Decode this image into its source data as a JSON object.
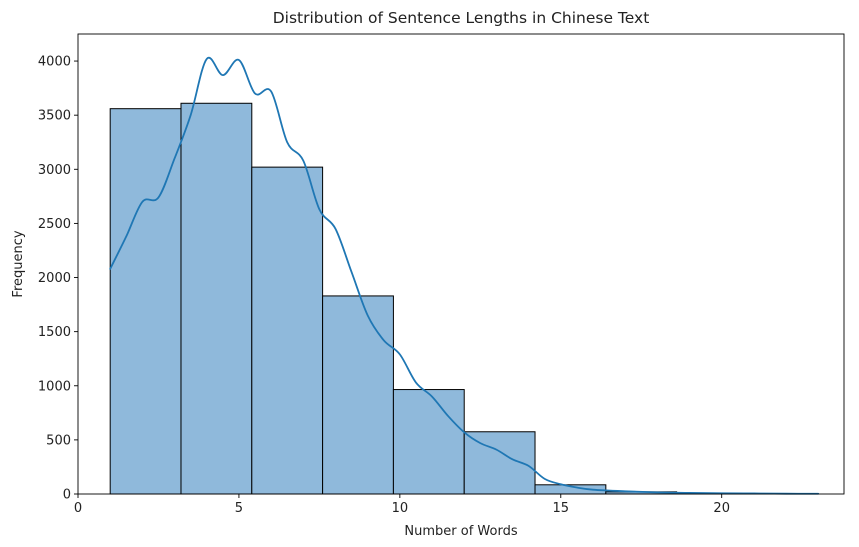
{
  "chart_data": {
    "type": "bar",
    "title": "Distribution of Sentence Lengths in Chinese Text",
    "xlabel": "Number of Words",
    "ylabel": "Frequency",
    "xlim": [
      0,
      23.8
    ],
    "ylim": [
      0,
      4250
    ],
    "xticks": [
      0,
      5,
      10,
      15,
      20
    ],
    "yticks": [
      0,
      500,
      1000,
      1500,
      2000,
      2500,
      3000,
      3500,
      4000
    ],
    "bar_color": "#8FB9DB",
    "edge_color": "#000000",
    "line_color": "#1F77B4",
    "grid": false,
    "bins": [
      {
        "x0": 1.0,
        "x1": 3.2,
        "value": 3560
      },
      {
        "x0": 3.2,
        "x1": 5.4,
        "value": 3610
      },
      {
        "x0": 5.4,
        "x1": 7.6,
        "value": 3020
      },
      {
        "x0": 7.6,
        "x1": 9.8,
        "value": 1830
      },
      {
        "x0": 9.8,
        "x1": 12.0,
        "value": 965
      },
      {
        "x0": 12.0,
        "x1": 14.2,
        "value": 575
      },
      {
        "x0": 14.2,
        "x1": 16.4,
        "value": 85
      },
      {
        "x0": 16.4,
        "x1": 18.6,
        "value": 20
      },
      {
        "x0": 18.6,
        "x1": 20.8,
        "value": 8
      },
      {
        "x0": 20.8,
        "x1": 23.0,
        "value": 3
      }
    ],
    "kde": {
      "name": "",
      "x": [
        1.0,
        1.5,
        2.0,
        2.5,
        3.0,
        3.5,
        4.0,
        4.5,
        5.0,
        5.5,
        6.0,
        6.5,
        7.0,
        7.5,
        8.0,
        8.5,
        9.0,
        9.5,
        10.0,
        10.5,
        11.0,
        11.5,
        12.0,
        12.5,
        13.0,
        13.5,
        14.0,
        14.5,
        15.0,
        15.5,
        16.0,
        17.0,
        18.0,
        19.0,
        20.0,
        21.0,
        22.0,
        23.0
      ],
      "y": [
        2080,
        2380,
        2700,
        2740,
        3100,
        3500,
        4020,
        3870,
        4010,
        3700,
        3720,
        3250,
        3080,
        2630,
        2450,
        2050,
        1650,
        1420,
        1290,
        1030,
        900,
        720,
        570,
        470,
        410,
        320,
        260,
        140,
        90,
        60,
        40,
        25,
        15,
        10,
        7,
        5,
        3,
        2
      ]
    }
  }
}
